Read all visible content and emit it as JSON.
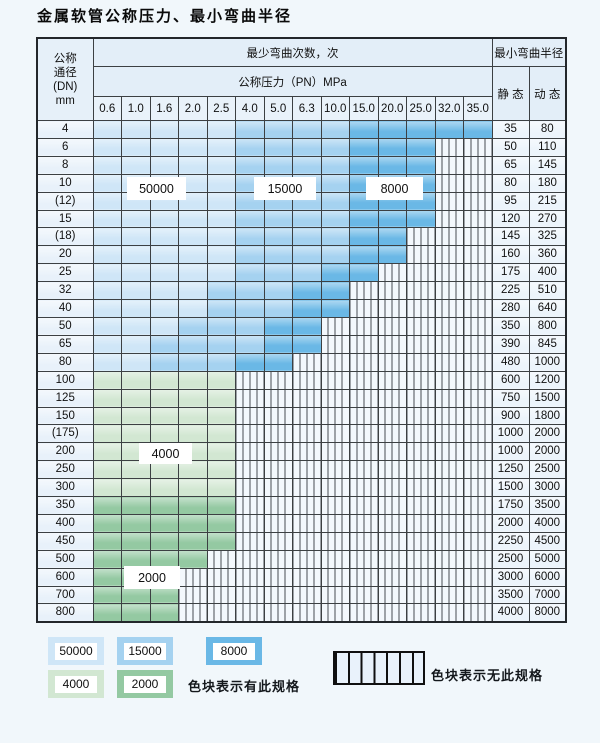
{
  "page": {
    "title": "金属软管公称压力、最小弯曲半径"
  },
  "table": {
    "dn_header": {
      "l1": "公称",
      "l2": "通径",
      "l3": "(DN)",
      "l4": "mm"
    },
    "bend_cycles_header": "最少弯曲次数，次",
    "pressure_header": "公称压力（PN）MPa",
    "radius_header": "最小弯曲半径",
    "static_label": "静 态",
    "dynamic_label": "动 态",
    "pressures": [
      "0.6",
      "1.0",
      "1.6",
      "2.0",
      "2.5",
      "4.0",
      "5.0",
      "6.3",
      "10.0",
      "15.0",
      "20.0",
      "25.0",
      "32.0",
      "35.0"
    ],
    "cell_code_meaning": {
      "L": "50000",
      "M": "15000",
      "D": "8000",
      "G": "4000",
      "H": "2000",
      "X": "no-spec-hatched"
    },
    "rows": [
      {
        "dn": "4",
        "static": "35",
        "dynamic": "80",
        "cells": "LLLLLMMMMDDDDD"
      },
      {
        "dn": "6",
        "static": "50",
        "dynamic": "110",
        "cells": "LLLLLMMMMDDDXX"
      },
      {
        "dn": "8",
        "static": "65",
        "dynamic": "145",
        "cells": "LLLLLMMMMDDDXX"
      },
      {
        "dn": "10",
        "static": "80",
        "dynamic": "180",
        "cells": "LLLLLMMMMDDDXX"
      },
      {
        "dn": "(12)",
        "static": "95",
        "dynamic": "215",
        "cells": "LLLLLMMMMDDDXX"
      },
      {
        "dn": "15",
        "static": "120",
        "dynamic": "270",
        "cells": "LLLLLMMMMDDDXX"
      },
      {
        "dn": "(18)",
        "static": "145",
        "dynamic": "325",
        "cells": "LLLLLMMMMDDXXX"
      },
      {
        "dn": "20",
        "static": "160",
        "dynamic": "360",
        "cells": "LLLLLMMMMDDXXX"
      },
      {
        "dn": "25",
        "static": "175",
        "dynamic": "400",
        "cells": "LLLLLMMMDDXXXX"
      },
      {
        "dn": "32",
        "static": "225",
        "dynamic": "510",
        "cells": "LLLLMMMDDXXXXX"
      },
      {
        "dn": "40",
        "static": "280",
        "dynamic": "640",
        "cells": "LLLLMMMDDXXXXX"
      },
      {
        "dn": "50",
        "static": "350",
        "dynamic": "800",
        "cells": "LLLMMMDDXXXXXX"
      },
      {
        "dn": "65",
        "static": "390",
        "dynamic": "845",
        "cells": "LLMMMMDDXXXXXX"
      },
      {
        "dn": "80",
        "static": "480",
        "dynamic": "1000",
        "cells": "LLMMMDDXXXXXXX"
      },
      {
        "dn": "100",
        "static": "600",
        "dynamic": "1200",
        "cells": "GGGGGXXXXXXXXX"
      },
      {
        "dn": "125",
        "static": "750",
        "dynamic": "1500",
        "cells": "GGGGGXXXXXXXXX"
      },
      {
        "dn": "150",
        "static": "900",
        "dynamic": "1800",
        "cells": "GGGGGXXXXXXXXX"
      },
      {
        "dn": "(175)",
        "static": "1000",
        "dynamic": "2000",
        "cells": "GGGGGXXXXXXXXX"
      },
      {
        "dn": "200",
        "static": "1000",
        "dynamic": "2000",
        "cells": "GGGGGXXXXXXXXX"
      },
      {
        "dn": "250",
        "static": "1250",
        "dynamic": "2500",
        "cells": "GGGGGXXXXXXXXX"
      },
      {
        "dn": "300",
        "static": "1500",
        "dynamic": "3000",
        "cells": "GGGGGXXXXXXXXX"
      },
      {
        "dn": "350",
        "static": "1750",
        "dynamic": "3500",
        "cells": "HHHHHXXXXXXXXX"
      },
      {
        "dn": "400",
        "static": "2000",
        "dynamic": "4000",
        "cells": "HHHHHXXXXXXXXX"
      },
      {
        "dn": "450",
        "static": "2250",
        "dynamic": "4500",
        "cells": "HHHHHXXXXXXXXX"
      },
      {
        "dn": "500",
        "static": "2500",
        "dynamic": "5000",
        "cells": "HHHHXXXXXXXXXX"
      },
      {
        "dn": "600",
        "static": "3000",
        "dynamic": "6000",
        "cells": "HHHXXXXXXXXXXX"
      },
      {
        "dn": "700",
        "static": "3500",
        "dynamic": "7000",
        "cells": "HHHXXXXXXXXXXX"
      },
      {
        "dn": "800",
        "static": "4000",
        "dynamic": "8000",
        "cells": "HHHXXXXXXXXXXX"
      }
    ]
  },
  "overlays": {
    "o50000": "50000",
    "o15000": "15000",
    "o8000": "8000",
    "o4000": "4000",
    "o2000": "2000"
  },
  "legend": {
    "blocks": [
      {
        "label": "50000",
        "color": "#cfe6f7"
      },
      {
        "label": "15000",
        "color": "#a5d2f0"
      },
      {
        "label": "8000",
        "color": "#6ab8e6"
      },
      {
        "label": "4000",
        "color": "#d2e7d2"
      },
      {
        "label": "2000",
        "color": "#94c9a2"
      }
    ],
    "has_spec_text": "色块表示有此规格",
    "no_spec_text": "色块表示无此规格"
  },
  "colors": {
    "light_blue_50000": "#cfe6f7",
    "medium_blue_15000": "#a5d2f0",
    "dark_blue_8000": "#6ab8e6",
    "light_green_4000": "#d2e7d2",
    "medium_green_2000": "#94c9a2",
    "hatch_background": "#f3f8fd",
    "grid_line": "#3c4043"
  }
}
